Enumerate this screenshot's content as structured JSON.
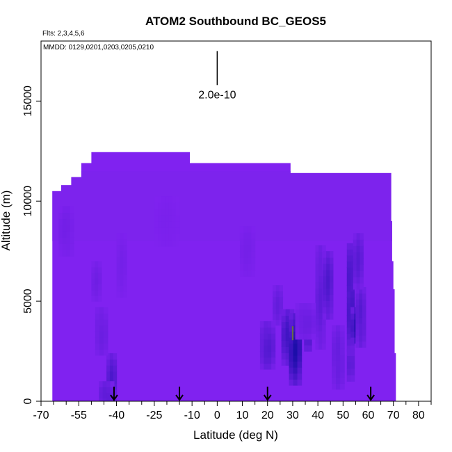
{
  "chart_data": {
    "type": "heatmap",
    "title": "ATOM2 Southbound BC_GEOS5",
    "subtitle_flights": "Flts: 2,3,4,5,6",
    "subtitle_dates": "MMDD: 0129,0201,0203,0205,0210",
    "xlabel": "Latitude (deg N)",
    "ylabel": "Altitude (m)",
    "xlim": [
      -70,
      85
    ],
    "ylim": [
      0,
      18000
    ],
    "x_ticks": [
      -70,
      -55,
      -40,
      -25,
      -10,
      0,
      10,
      20,
      30,
      40,
      50,
      60,
      70,
      80
    ],
    "x_tick_labels": [
      "-70",
      "-55",
      "-40",
      "-25",
      "-10",
      "0",
      "10",
      "20",
      "30",
      "40",
      "50",
      "60",
      "70",
      "80"
    ],
    "x_minor_ticks": [
      -65,
      -60,
      -50,
      -45,
      -35,
      -30,
      -20,
      -15,
      -5,
      5,
      15,
      25,
      35,
      45,
      55,
      65,
      75,
      85
    ],
    "y_ticks": [
      0,
      5000,
      10000,
      15000
    ],
    "y_tick_labels": [
      "0",
      "5000",
      "10000",
      "15000"
    ],
    "scale_bar_label": "2.0e-10",
    "scale_bar": {
      "x": 0,
      "y_top": 17500,
      "y_bottom": 15800
    },
    "base_color": "#8022f0",
    "dark_color": "#0a0a9c",
    "background_color": "#7c24ec",
    "profile_markers_lat": [
      -41,
      -15,
      20,
      61
    ],
    "envelope_steps": [
      {
        "x0": -65.5,
        "x1": -62,
        "top": 10500
      },
      {
        "x0": -62,
        "x1": -58,
        "top": 10800
      },
      {
        "x0": -58,
        "x1": -54,
        "top": 11200
      },
      {
        "x0": -54,
        "x1": -50,
        "top": 11900
      },
      {
        "x0": -50,
        "x1": -11,
        "top": 12450
      },
      {
        "x0": -11,
        "x1": 29,
        "top": 11900
      },
      {
        "x0": 29,
        "x1": 69,
        "top": 11400
      }
    ],
    "envelope_right_steps": [
      {
        "y0": 0,
        "y1": 2400,
        "x1": 71
      },
      {
        "y0": 2400,
        "y1": 5600,
        "x1": 70.5
      },
      {
        "y0": 5600,
        "y1": 7000,
        "x1": 70
      },
      {
        "y0": 7000,
        "y1": 9000,
        "x1": 69.5
      },
      {
        "y0": 9000,
        "y1": 11400,
        "x1": 69
      }
    ],
    "envelope_left_x": -66,
    "dark_cells": [
      {
        "x": -42,
        "y": 1200,
        "w": 4,
        "h": 2400,
        "intensity": 0.45
      },
      {
        "x": -44,
        "y": 300,
        "w": 6,
        "h": 1400,
        "intensity": 0.35
      },
      {
        "x": -46,
        "y": 3500,
        "w": 5,
        "h": 2400,
        "intensity": 0.2
      },
      {
        "x": -48,
        "y": 6000,
        "w": 4,
        "h": 2000,
        "intensity": 0.15
      },
      {
        "x": -60,
        "y": 8500,
        "w": 6,
        "h": 2500,
        "intensity": 0.12
      },
      {
        "x": -38,
        "y": 6800,
        "w": 4,
        "h": 3200,
        "intensity": 0.1
      },
      {
        "x": 20,
        "y": 2800,
        "w": 6,
        "h": 2400,
        "intensity": 0.4
      },
      {
        "x": 24,
        "y": 4800,
        "w": 4,
        "h": 2000,
        "intensity": 0.25
      },
      {
        "x": 28,
        "y": 3200,
        "w": 5,
        "h": 2800,
        "intensity": 0.55
      },
      {
        "x": 31,
        "y": 2600,
        "w": 5,
        "h": 3600,
        "intensity": 0.85
      },
      {
        "x": 36,
        "y": 3600,
        "w": 3,
        "h": 2200,
        "intensity": 0.5
      },
      {
        "x": 41,
        "y": 5200,
        "w": 4,
        "h": 5200,
        "intensity": 0.3
      },
      {
        "x": 44,
        "y": 5800,
        "w": 4,
        "h": 3400,
        "intensity": 0.45
      },
      {
        "x": 48,
        "y": 2200,
        "w": 5,
        "h": 3200,
        "intensity": 0.25
      },
      {
        "x": 53,
        "y": 5200,
        "w": 3,
        "h": 5400,
        "intensity": 0.6
      },
      {
        "x": 55,
        "y": 3800,
        "w": 4,
        "h": 1800,
        "intensity": 0.7
      },
      {
        "x": 57,
        "y": 4200,
        "w": 4,
        "h": 3000,
        "intensity": 0.4
      },
      {
        "x": 56,
        "y": 7000,
        "w": 4,
        "h": 2800,
        "intensity": 0.35
      },
      {
        "x": 53,
        "y": 1800,
        "w": 3,
        "h": 1600,
        "intensity": 0.35
      },
      {
        "x": 35,
        "y": 4000,
        "w": 8,
        "h": 1800,
        "intensity": 0.2
      },
      {
        "x": 12,
        "y": 7500,
        "w": 6,
        "h": 2500,
        "intensity": 0.1
      },
      {
        "x": -20,
        "y": 9000,
        "w": 10,
        "h": 2500,
        "intensity": 0.05
      }
    ],
    "highlight_cell": {
      "x": 30,
      "y": 3400,
      "w": 0.6,
      "h": 700,
      "color": "#6a6a4a"
    }
  }
}
